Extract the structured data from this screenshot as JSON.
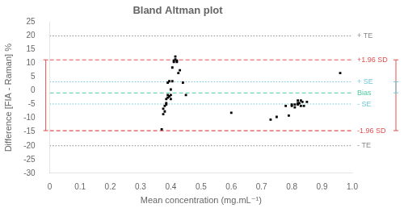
{
  "chart_data": {
    "type": "scatter",
    "title": "Bland Altman plot",
    "x_label": "Mean concentration (mg.mL⁻¹)",
    "y_label": "Difference [FIA - Raman] %",
    "xlim": [
      0,
      1.0
    ],
    "ylim": [
      -30,
      25
    ],
    "xticks": [
      0,
      0.1,
      0.2,
      0.3,
      0.4,
      0.5,
      0.6,
      0.7,
      0.8,
      0.9,
      {
        "value": 1.0,
        "label": "1.0"
      }
    ],
    "yticks": [
      -30,
      -25,
      -20,
      -15,
      -10,
      -5,
      0,
      5,
      10,
      15,
      20,
      25
    ],
    "grid": false,
    "color": "black",
    "marker": "square",
    "x": [
      0.37,
      0.375,
      0.375,
      0.38,
      0.38,
      0.385,
      0.385,
      0.385,
      0.39,
      0.39,
      0.39,
      0.395,
      0.395,
      0.4,
      0.4,
      0.4,
      0.405,
      0.405,
      0.41,
      0.41,
      0.415,
      0.415,
      0.42,
      0.42,
      0.425,
      0.43,
      0.44,
      0.45,
      0.6,
      0.73,
      0.75,
      0.78,
      0.79,
      0.8,
      0.8,
      0.81,
      0.81,
      0.82,
      0.82,
      0.82,
      0.825,
      0.83,
      0.83,
      0.835,
      0.84,
      0.85,
      0.96
    ],
    "values": [
      -14.0,
      -8.5,
      -6.5,
      -5.5,
      -7.5,
      -4.5,
      -3.0,
      -5.0,
      -2.5,
      3.0,
      -1.5,
      3.5,
      -2.0,
      -1.5,
      0.5,
      -3.0,
      8.5,
      3.5,
      10.5,
      11.0,
      11.5,
      12.5,
      10.5,
      11.0,
      6.5,
      7.5,
      3.0,
      -1.5,
      -8.0,
      -10.5,
      -9.5,
      -5.5,
      -9.0,
      -5.5,
      -5.0,
      -5.0,
      -6.0,
      -4.5,
      -3.5,
      -5.0,
      -4.5,
      -5.5,
      -3.5,
      -4.0,
      -5.5,
      -4.0,
      6.5
    ],
    "hlines": [
      {
        "y": 20.0,
        "label": "+ TE",
        "color": "#888888",
        "line_style": "dotted"
      },
      {
        "y": -20.0,
        "label": "- TE",
        "color": "#888888",
        "line_style": "dotted"
      },
      {
        "y": 11.3,
        "label": "+1.96 SD",
        "color": "#e05050",
        "line_style": "dashed"
      },
      {
        "y": -14.5,
        "label": "-1.96 SD",
        "color": "#e05050",
        "line_style": "dashed"
      },
      {
        "y": 3.3,
        "label": "+ SE",
        "color": "#70c8d8",
        "line_style": "dotted"
      },
      {
        "y": -4.8,
        "label": "- SE",
        "color": "#70c8d8",
        "line_style": "dotted"
      },
      {
        "y": -0.75,
        "label": "Bias",
        "color": "#50c8a0",
        "line_style": "dashed"
      }
    ],
    "brackets": [
      {
        "from": "+1.96 SD",
        "to": "-1.96 SD",
        "side": "right"
      },
      {
        "from": "+ SE",
        "to": "Bias",
        "side": "right"
      },
      {
        "from": "+1.96 SD",
        "to": "-1.96 SD",
        "side": "left"
      }
    ]
  }
}
